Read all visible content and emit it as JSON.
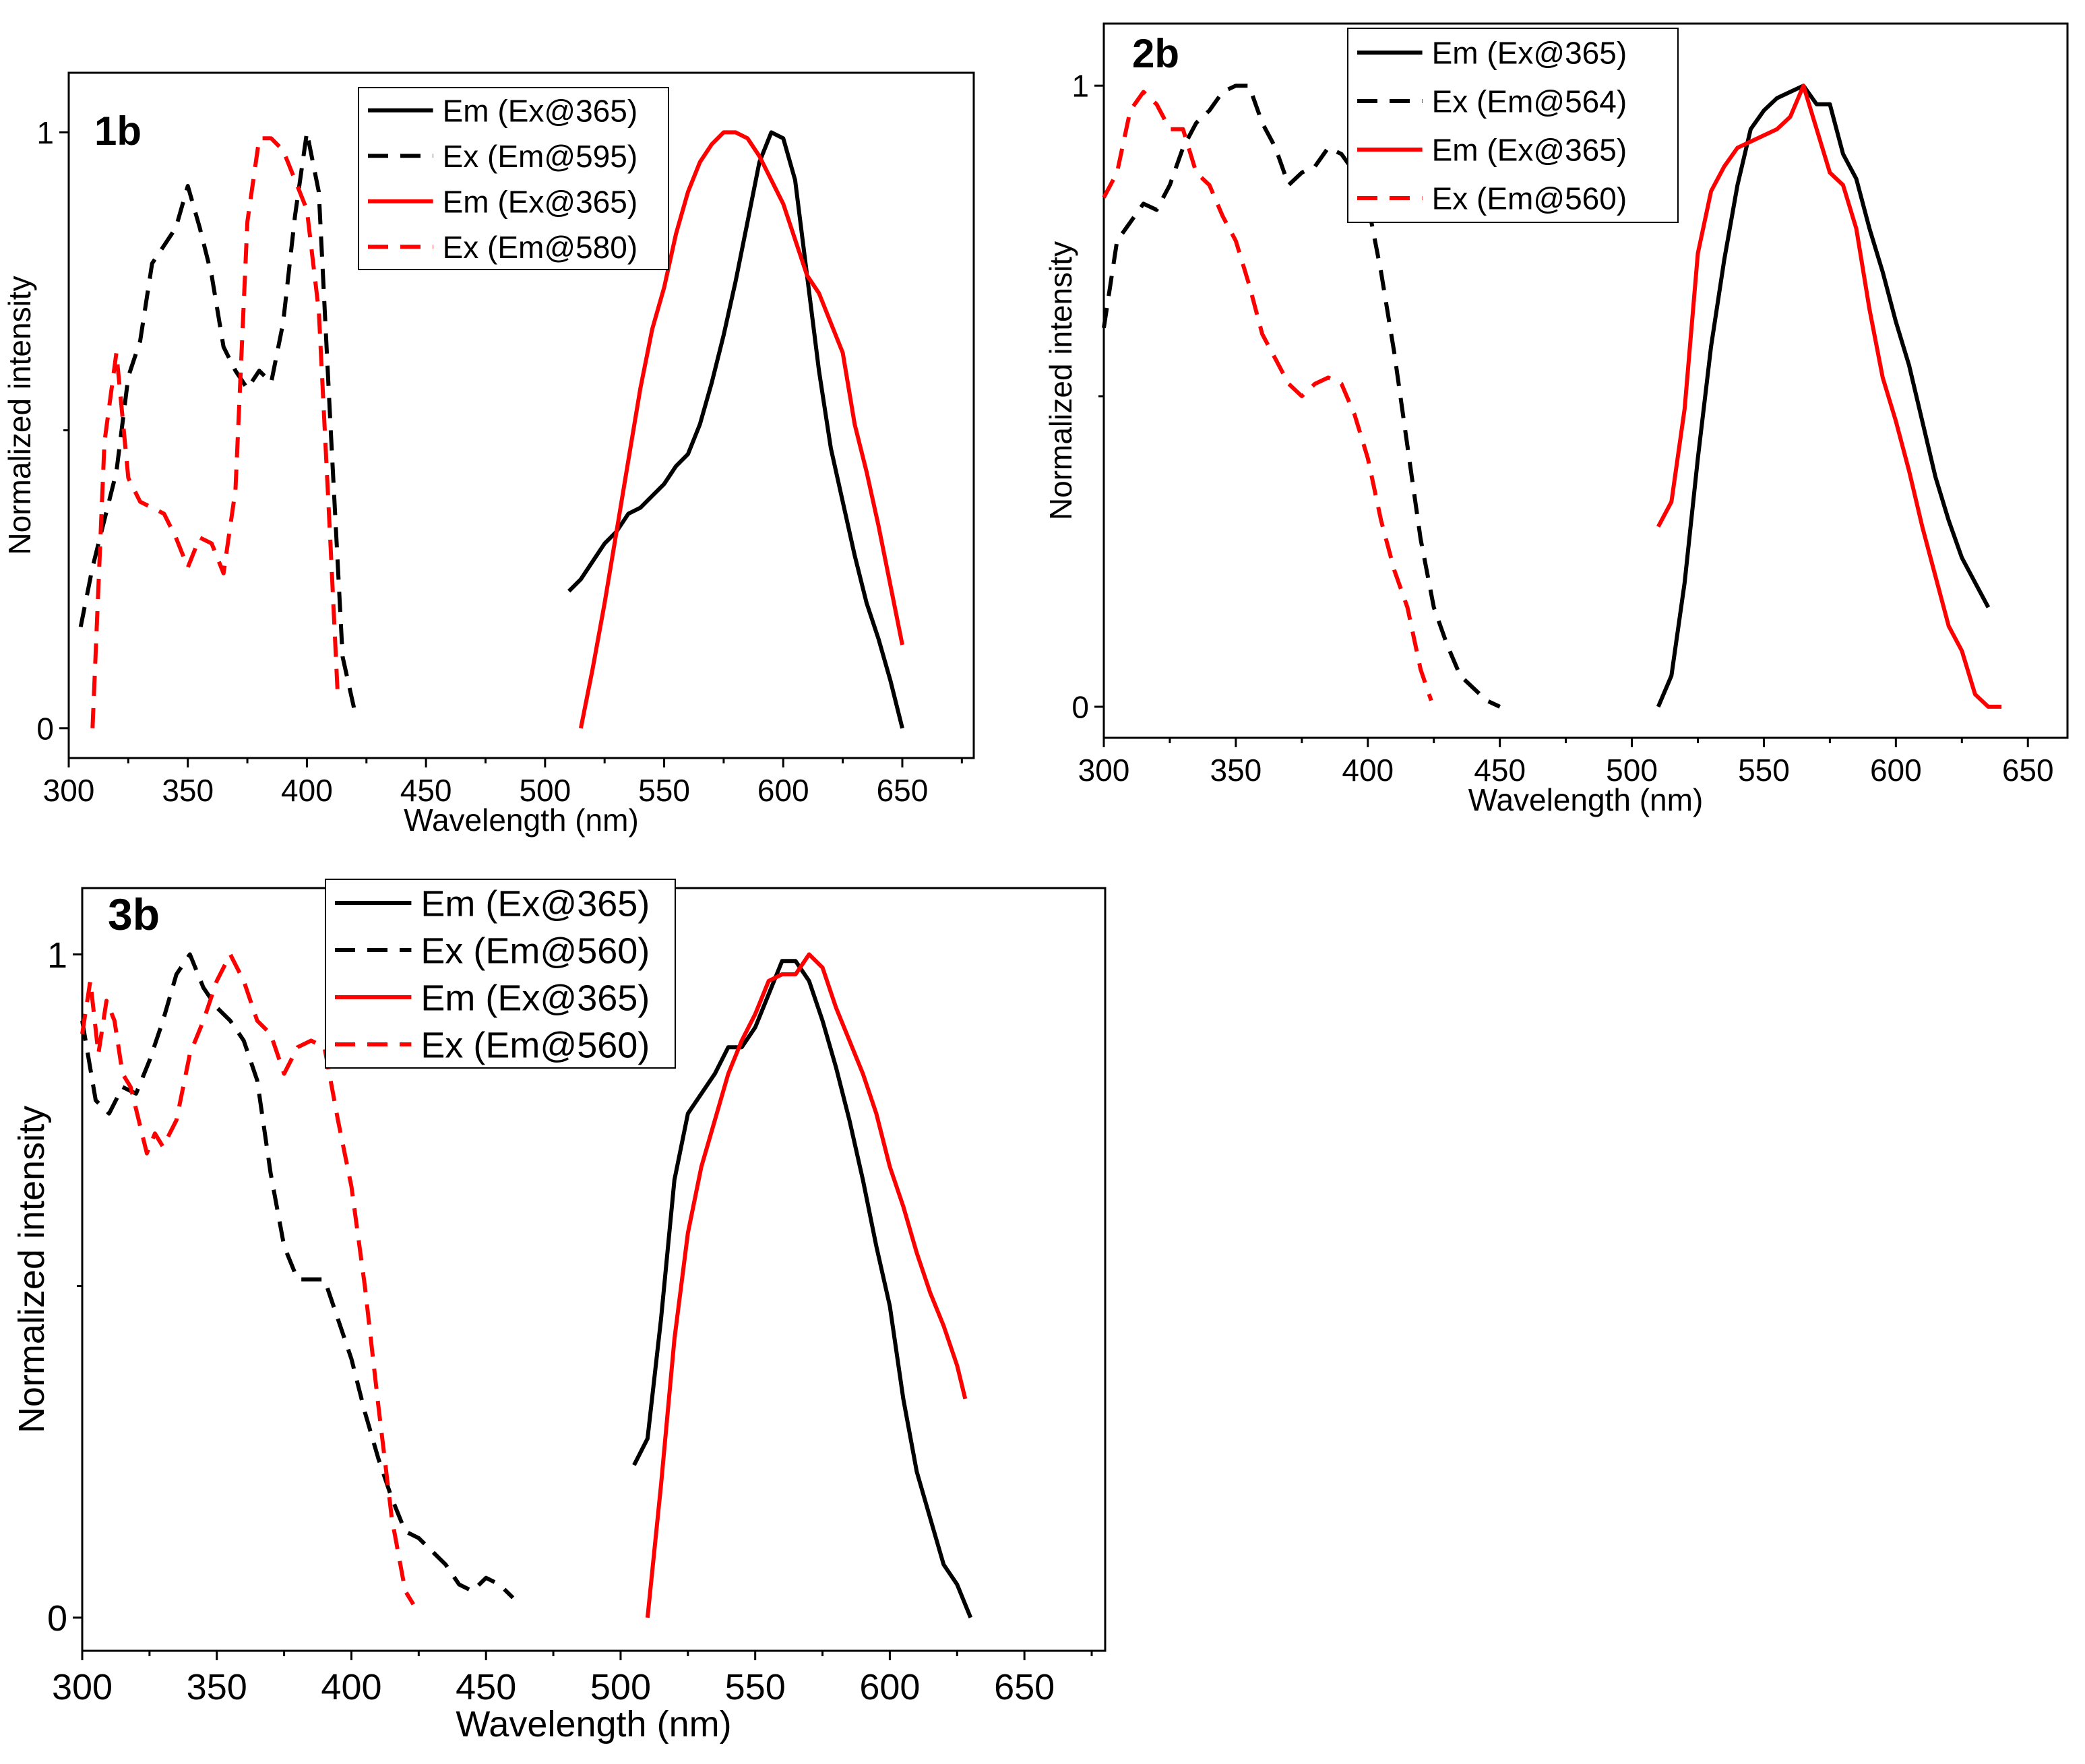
{
  "chart_data": [
    {
      "type": "line",
      "panel_label": "1b",
      "xlabel": "Wavelength (nm)",
      "ylabel": "Normalized intensity",
      "xlim": [
        300,
        680
      ],
      "ylim": [
        -0.05,
        1.1
      ],
      "xticks": [
        300,
        350,
        400,
        450,
        500,
        550,
        600,
        650
      ],
      "yticks": [
        0,
        1
      ],
      "legend": "top-right",
      "series": [
        {
          "name": "Em (Ex@365)",
          "color": "#000000",
          "dash": "solid",
          "x": [
            510,
            515,
            520,
            525,
            530,
            535,
            540,
            545,
            550,
            555,
            560,
            565,
            570,
            575,
            580,
            585,
            590,
            595,
            600,
            605,
            610,
            615,
            620,
            625,
            630,
            635,
            640,
            645,
            650
          ],
          "y": [
            0.23,
            0.25,
            0.28,
            0.31,
            0.33,
            0.36,
            0.37,
            0.39,
            0.41,
            0.44,
            0.46,
            0.51,
            0.58,
            0.66,
            0.75,
            0.85,
            0.95,
            1.0,
            0.99,
            0.92,
            0.76,
            0.6,
            0.47,
            0.38,
            0.29,
            0.21,
            0.15,
            0.08,
            0.0
          ]
        },
        {
          "name": "Ex (Em@595)",
          "color": "#000000",
          "dash": "dashed",
          "x": [
            305,
            310,
            315,
            320,
            325,
            330,
            335,
            340,
            345,
            350,
            355,
            360,
            365,
            370,
            375,
            380,
            385,
            390,
            395,
            400,
            405,
            410,
            415,
            420
          ],
          "y": [
            0.17,
            0.27,
            0.35,
            0.43,
            0.59,
            0.65,
            0.78,
            0.81,
            0.84,
            0.91,
            0.84,
            0.76,
            0.64,
            0.6,
            0.57,
            0.6,
            0.58,
            0.68,
            0.86,
            1.0,
            0.9,
            0.5,
            0.12,
            0.03
          ]
        },
        {
          "name": "Em (Ex@365)",
          "color": "#ff0000",
          "dash": "solid",
          "x": [
            515,
            520,
            525,
            530,
            535,
            540,
            545,
            550,
            555,
            560,
            565,
            570,
            575,
            580,
            585,
            590,
            595,
            600,
            605,
            610,
            615,
            620,
            625,
            630,
            635,
            640,
            645,
            650
          ],
          "y": [
            0.0,
            0.1,
            0.21,
            0.33,
            0.45,
            0.57,
            0.67,
            0.74,
            0.83,
            0.9,
            0.95,
            0.98,
            1.0,
            1.0,
            0.99,
            0.96,
            0.92,
            0.88,
            0.82,
            0.76,
            0.73,
            0.68,
            0.63,
            0.51,
            0.43,
            0.34,
            0.24,
            0.14
          ]
        },
        {
          "name": "Ex (Em@580)",
          "color": "#ff0000",
          "dash": "dashed",
          "x": [
            310,
            315,
            320,
            325,
            330,
            335,
            340,
            345,
            350,
            355,
            360,
            365,
            370,
            375,
            380,
            385,
            390,
            395,
            400,
            405,
            410,
            413
          ],
          "y": [
            0.0,
            0.48,
            0.63,
            0.42,
            0.38,
            0.37,
            0.36,
            0.32,
            0.27,
            0.32,
            0.31,
            0.26,
            0.4,
            0.85,
            0.99,
            0.99,
            0.97,
            0.92,
            0.87,
            0.7,
            0.3,
            0.05
          ]
        }
      ]
    },
    {
      "type": "line",
      "panel_label": "2b",
      "xlabel": "Wavelength (nm)",
      "ylabel": "Normalized  intensity",
      "xlim": [
        300,
        665
      ],
      "ylim": [
        -0.05,
        1.1
      ],
      "xticks": [
        300,
        350,
        400,
        450,
        500,
        550,
        600,
        650
      ],
      "yticks": [
        0,
        1
      ],
      "legend": "top-right",
      "series": [
        {
          "name": "Em (Ex@365)",
          "color": "#000000",
          "dash": "solid",
          "x": [
            510,
            515,
            520,
            525,
            530,
            535,
            540,
            545,
            550,
            555,
            560,
            565,
            570,
            575,
            580,
            585,
            590,
            595,
            600,
            605,
            610,
            615,
            620,
            625,
            630,
            635
          ],
          "y": [
            0.0,
            0.05,
            0.2,
            0.4,
            0.58,
            0.72,
            0.84,
            0.93,
            0.96,
            0.98,
            0.99,
            1.0,
            0.97,
            0.97,
            0.89,
            0.85,
            0.77,
            0.7,
            0.62,
            0.55,
            0.46,
            0.37,
            0.3,
            0.24,
            0.2,
            0.16
          ]
        },
        {
          "name": "Ex (Em@564)",
          "color": "#000000",
          "dash": "dashed",
          "x": [
            300,
            305,
            310,
            315,
            320,
            325,
            330,
            335,
            340,
            345,
            350,
            355,
            360,
            365,
            370,
            375,
            380,
            385,
            390,
            395,
            400,
            405,
            410,
            415,
            420,
            425,
            430,
            435,
            440,
            445,
            450
          ],
          "y": [
            0.61,
            0.75,
            0.78,
            0.81,
            0.8,
            0.84,
            0.9,
            0.94,
            0.96,
            0.99,
            1.0,
            1.0,
            0.94,
            0.9,
            0.84,
            0.86,
            0.87,
            0.9,
            0.89,
            0.86,
            0.81,
            0.7,
            0.57,
            0.42,
            0.27,
            0.16,
            0.1,
            0.05,
            0.03,
            0.01,
            0.0
          ]
        },
        {
          "name": "Em (Ex@365)",
          "color": "#ff0000",
          "dash": "solid",
          "x": [
            510,
            515,
            520,
            525,
            530,
            535,
            540,
            545,
            550,
            555,
            560,
            565,
            570,
            575,
            580,
            585,
            590,
            595,
            600,
            605,
            610,
            615,
            620,
            625,
            630,
            635,
            640
          ],
          "y": [
            0.29,
            0.33,
            0.48,
            0.73,
            0.83,
            0.87,
            0.9,
            0.91,
            0.92,
            0.93,
            0.95,
            1.0,
            0.93,
            0.86,
            0.84,
            0.77,
            0.64,
            0.53,
            0.46,
            0.38,
            0.29,
            0.21,
            0.13,
            0.09,
            0.02,
            0.0,
            0.0
          ]
        },
        {
          "name": "Ex (Em@560)",
          "color": "#ff0000",
          "dash": "dashed",
          "x": [
            300,
            305,
            310,
            315,
            320,
            325,
            330,
            335,
            340,
            345,
            350,
            355,
            360,
            365,
            370,
            375,
            380,
            385,
            390,
            395,
            400,
            405,
            410,
            415,
            420,
            424
          ],
          "y": [
            0.82,
            0.86,
            0.96,
            0.99,
            0.97,
            0.93,
            0.93,
            0.86,
            0.84,
            0.79,
            0.75,
            0.68,
            0.6,
            0.56,
            0.52,
            0.5,
            0.52,
            0.53,
            0.52,
            0.47,
            0.4,
            0.3,
            0.22,
            0.16,
            0.06,
            0.01
          ]
        }
      ]
    },
    {
      "type": "line",
      "panel_label": "3b",
      "xlabel": "Wavelength (nm)",
      "ylabel": "Normalized intensity",
      "xlim": [
        300,
        680
      ],
      "ylim": [
        -0.05,
        1.1
      ],
      "xticks": [
        300,
        350,
        400,
        450,
        500,
        550,
        600,
        650
      ],
      "yticks": [
        0,
        1
      ],
      "legend": "top-right",
      "series": [
        {
          "name": "Em (Ex@365)",
          "color": "#000000",
          "dash": "solid",
          "x": [
            505,
            510,
            515,
            520,
            525,
            530,
            535,
            540,
            545,
            550,
            555,
            560,
            565,
            570,
            575,
            580,
            585,
            590,
            595,
            600,
            605,
            610,
            615,
            620,
            625,
            630
          ],
          "y": [
            0.23,
            0.27,
            0.45,
            0.66,
            0.76,
            0.79,
            0.82,
            0.86,
            0.86,
            0.89,
            0.94,
            0.99,
            0.99,
            0.96,
            0.9,
            0.83,
            0.75,
            0.66,
            0.56,
            0.47,
            0.33,
            0.22,
            0.15,
            0.08,
            0.05,
            0.0
          ]
        },
        {
          "name": "Ex (Em@560)",
          "color": "#000000",
          "dash": "dashed",
          "x": [
            300,
            305,
            310,
            315,
            320,
            325,
            330,
            335,
            340,
            345,
            350,
            355,
            360,
            365,
            370,
            375,
            380,
            385,
            390,
            395,
            400,
            405,
            410,
            415,
            420,
            425,
            430,
            435,
            440,
            445,
            450,
            455,
            460
          ],
          "y": [
            0.9,
            0.78,
            0.76,
            0.8,
            0.79,
            0.84,
            0.9,
            0.97,
            1.0,
            0.95,
            0.92,
            0.9,
            0.87,
            0.81,
            0.67,
            0.56,
            0.51,
            0.51,
            0.51,
            0.45,
            0.39,
            0.31,
            0.24,
            0.18,
            0.13,
            0.12,
            0.1,
            0.08,
            0.05,
            0.04,
            0.06,
            0.05,
            0.03
          ]
        },
        {
          "name": "Em (Ex@365)",
          "color": "#ff0000",
          "dash": "solid",
          "x": [
            510,
            515,
            520,
            525,
            530,
            535,
            540,
            545,
            550,
            555,
            560,
            565,
            570,
            575,
            580,
            585,
            590,
            595,
            600,
            605,
            610,
            615,
            620,
            625,
            628
          ],
          "y": [
            0.0,
            0.2,
            0.42,
            0.58,
            0.68,
            0.75,
            0.82,
            0.87,
            0.91,
            0.96,
            0.97,
            0.97,
            1.0,
            0.98,
            0.92,
            0.87,
            0.82,
            0.76,
            0.68,
            0.62,
            0.55,
            0.49,
            0.44,
            0.38,
            0.33
          ]
        },
        {
          "name": "Ex (Em@560)",
          "color": "#ff0000",
          "dash": "dashed",
          "x": [
            300,
            303,
            306,
            309,
            312,
            315,
            318,
            321,
            324,
            327,
            330,
            335,
            340,
            345,
            350,
            355,
            360,
            365,
            370,
            375,
            380,
            385,
            390,
            395,
            400,
            405,
            410,
            415,
            420,
            423
          ],
          "y": [
            0.88,
            0.96,
            0.85,
            0.93,
            0.9,
            0.82,
            0.8,
            0.75,
            0.7,
            0.73,
            0.71,
            0.75,
            0.85,
            0.9,
            0.96,
            1.0,
            0.96,
            0.9,
            0.88,
            0.82,
            0.86,
            0.87,
            0.86,
            0.75,
            0.65,
            0.5,
            0.32,
            0.15,
            0.04,
            0.02
          ]
        }
      ]
    }
  ]
}
